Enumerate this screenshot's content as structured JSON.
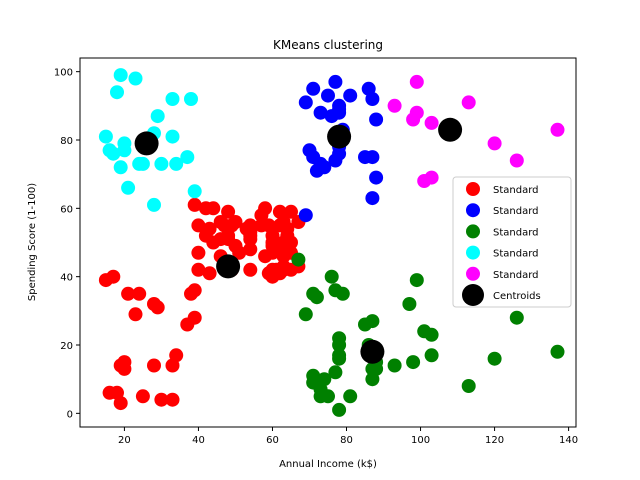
{
  "chart_data": {
    "type": "scatter",
    "title": "KMeans clustering",
    "xlabel": "Annual Income (k$)",
    "ylabel": "Spending Score (1-100)",
    "xlim": [
      8,
      142
    ],
    "ylim": [
      -4,
      104
    ],
    "xticks": [
      20,
      40,
      60,
      80,
      100,
      120,
      140
    ],
    "yticks": [
      0,
      20,
      40,
      60,
      80,
      100
    ],
    "grid": false,
    "legend_position": "center-right",
    "series": [
      {
        "name": "Standard",
        "color": "#ff0000",
        "points": [
          [
            15,
            39
          ],
          [
            16,
            6
          ],
          [
            17,
            40
          ],
          [
            18,
            6
          ],
          [
            19,
            3
          ],
          [
            19,
            14
          ],
          [
            20,
            15
          ],
          [
            20,
            13
          ],
          [
            21,
            35
          ],
          [
            23,
            29
          ],
          [
            24,
            35
          ],
          [
            25,
            5
          ],
          [
            28,
            14
          ],
          [
            28,
            32
          ],
          [
            29,
            31
          ],
          [
            30,
            4
          ],
          [
            33,
            4
          ],
          [
            33,
            14
          ],
          [
            34,
            17
          ],
          [
            37,
            26
          ],
          [
            38,
            35
          ],
          [
            39,
            36
          ],
          [
            39,
            28
          ],
          [
            39,
            61
          ],
          [
            40,
            55
          ],
          [
            40,
            47
          ],
          [
            40,
            42
          ],
          [
            42,
            52
          ],
          [
            42,
            60
          ],
          [
            43,
            54
          ],
          [
            43,
            41
          ],
          [
            44,
            60
          ],
          [
            44,
            50
          ],
          [
            46,
            51
          ],
          [
            46,
            46
          ],
          [
            46,
            56
          ],
          [
            47,
            55
          ],
          [
            48,
            52
          ],
          [
            48,
            59
          ],
          [
            48,
            51
          ],
          [
            49,
            55
          ],
          [
            49,
            42
          ],
          [
            50,
            49
          ],
          [
            50,
            56
          ],
          [
            51,
            47
          ],
          [
            53,
            54
          ],
          [
            54,
            53
          ],
          [
            54,
            48
          ],
          [
            54,
            52
          ],
          [
            54,
            42
          ],
          [
            54,
            51
          ],
          [
            54,
            55
          ],
          [
            57,
            58
          ],
          [
            57,
            55
          ],
          [
            58,
            60
          ],
          [
            58,
            46
          ],
          [
            59,
            55
          ],
          [
            59,
            41
          ],
          [
            60,
            49
          ],
          [
            60,
            40
          ],
          [
            60,
            42
          ],
          [
            60,
            52
          ],
          [
            60,
            47
          ],
          [
            60,
            50
          ],
          [
            61,
            42
          ],
          [
            61,
            49
          ],
          [
            62,
            41
          ],
          [
            62,
            48
          ],
          [
            62,
            59
          ],
          [
            62,
            55
          ],
          [
            63,
            56
          ],
          [
            63,
            42
          ],
          [
            63,
            50
          ],
          [
            63,
            46
          ],
          [
            63,
            43
          ],
          [
            63,
            48
          ],
          [
            64,
            52
          ],
          [
            64,
            54
          ],
          [
            65,
            42
          ],
          [
            65,
            59
          ],
          [
            65,
            50
          ],
          [
            65,
            47
          ],
          [
            67,
            56
          ],
          [
            67,
            43
          ]
        ]
      },
      {
        "name": "Standard",
        "color": "#0000ff",
        "points": [
          [
            69,
            58
          ],
          [
            69,
            91
          ],
          [
            70,
            77
          ],
          [
            71,
            95
          ],
          [
            71,
            75
          ],
          [
            72,
            71
          ],
          [
            73,
            88
          ],
          [
            73,
            73
          ],
          [
            74,
            72
          ],
          [
            75,
            93
          ],
          [
            76,
            87
          ],
          [
            77,
            97
          ],
          [
            77,
            74
          ],
          [
            78,
            90
          ],
          [
            78,
            88
          ],
          [
            78,
            76
          ],
          [
            78,
            89
          ],
          [
            78,
            78
          ],
          [
            79,
            83
          ],
          [
            81,
            93
          ],
          [
            85,
            75
          ],
          [
            86,
            95
          ],
          [
            87,
            63
          ],
          [
            87,
            75
          ],
          [
            87,
            92
          ],
          [
            88,
            69
          ],
          [
            88,
            86
          ]
        ]
      },
      {
        "name": "Standard",
        "color": "#008000",
        "points": [
          [
            67,
            45
          ],
          [
            69,
            29
          ],
          [
            71,
            35
          ],
          [
            71,
            11
          ],
          [
            71,
            9
          ],
          [
            72,
            34
          ],
          [
            73,
            5
          ],
          [
            73,
            7
          ],
          [
            74,
            10
          ],
          [
            75,
            5
          ],
          [
            76,
            40
          ],
          [
            77,
            12
          ],
          [
            77,
            36
          ],
          [
            78,
            22
          ],
          [
            78,
            17
          ],
          [
            78,
            20
          ],
          [
            78,
            16
          ],
          [
            78,
            1
          ],
          [
            79,
            35
          ],
          [
            81,
            5
          ],
          [
            85,
            26
          ],
          [
            86,
            20
          ],
          [
            87,
            27
          ],
          [
            87,
            13
          ],
          [
            87,
            10
          ],
          [
            88,
            13
          ],
          [
            88,
            15
          ],
          [
            93,
            14
          ],
          [
            97,
            32
          ],
          [
            98,
            15
          ],
          [
            99,
            39
          ],
          [
            101,
            24
          ],
          [
            103,
            17
          ],
          [
            103,
            23
          ],
          [
            113,
            8
          ],
          [
            120,
            16
          ],
          [
            126,
            28
          ],
          [
            137,
            18
          ]
        ]
      },
      {
        "name": "Standard",
        "color": "#00ffff",
        "points": [
          [
            15,
            81
          ],
          [
            16,
            77
          ],
          [
            17,
            76
          ],
          [
            18,
            94
          ],
          [
            19,
            99
          ],
          [
            19,
            72
          ],
          [
            20,
            77
          ],
          [
            20,
            79
          ],
          [
            21,
            66
          ],
          [
            23,
            98
          ],
          [
            24,
            73
          ],
          [
            25,
            73
          ],
          [
            28,
            82
          ],
          [
            28,
            61
          ],
          [
            29,
            87
          ],
          [
            30,
            73
          ],
          [
            33,
            92
          ],
          [
            33,
            81
          ],
          [
            34,
            73
          ],
          [
            37,
            75
          ],
          [
            38,
            92
          ],
          [
            39,
            65
          ]
        ]
      },
      {
        "name": "Standard",
        "color": "#ff00ff",
        "points": [
          [
            93,
            90
          ],
          [
            98,
            86
          ],
          [
            99,
            88
          ],
          [
            99,
            97
          ],
          [
            101,
            68
          ],
          [
            103,
            85
          ],
          [
            103,
            69
          ],
          [
            113,
            91
          ],
          [
            120,
            79
          ],
          [
            126,
            74
          ],
          [
            137,
            83
          ]
        ]
      },
      {
        "name": "Centroids",
        "color": "#000000",
        "points": [
          [
            26,
            79
          ],
          [
            48,
            43
          ],
          [
            78,
            81
          ],
          [
            87,
            18
          ],
          [
            108,
            83
          ]
        ]
      }
    ]
  }
}
